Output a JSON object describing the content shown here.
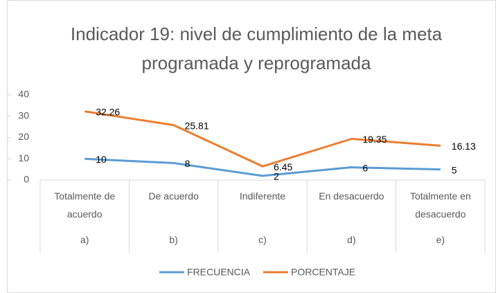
{
  "chart_data": {
    "type": "line",
    "title": "Indicador 19: nivel de cumplimiento de la meta programada y reprogramada",
    "categories": [
      "Totalmente de acuerdo",
      "De acuerdo",
      "Indiferente",
      "En desacuerdo",
      "Totalmente en desacuerdo"
    ],
    "category_groups": [
      "a)",
      "b)",
      "c)",
      "d)",
      "e)"
    ],
    "series": [
      {
        "name": "FRECUENCIA",
        "color": "#5b9bd5",
        "values": [
          10,
          8,
          2,
          6,
          5
        ]
      },
      {
        "name": "PORCENTAJE",
        "color": "#ed7d31",
        "values": [
          32.26,
          25.81,
          6.45,
          19.35,
          16.13
        ]
      }
    ],
    "ylim": [
      0,
      40
    ],
    "yticks": [
      0,
      10,
      20,
      30,
      40
    ],
    "grid": false,
    "legend": "bottom"
  }
}
